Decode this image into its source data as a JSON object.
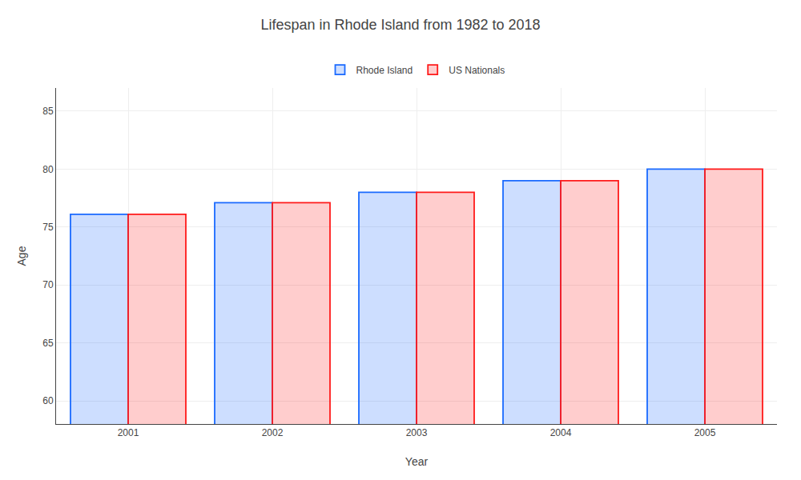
{
  "chart_data": {
    "type": "bar",
    "title": "Lifespan in Rhode Island from 1982 to 2018",
    "xlabel": "Year",
    "ylabel": "Age",
    "categories": [
      "2001",
      "2002",
      "2003",
      "2004",
      "2005"
    ],
    "series": [
      {
        "name": "Rhode Island",
        "color": "#1a6aff",
        "values": [
          76.1,
          77.1,
          78.0,
          79.0,
          80.0
        ]
      },
      {
        "name": "US Nationals",
        "color": "#ff1a1a",
        "values": [
          76.1,
          77.1,
          78.0,
          79.0,
          80.0
        ]
      }
    ],
    "ylim": [
      58,
      87
    ],
    "yticks": [
      60,
      65,
      70,
      75,
      80,
      85
    ],
    "grid": true,
    "legend": "top"
  }
}
